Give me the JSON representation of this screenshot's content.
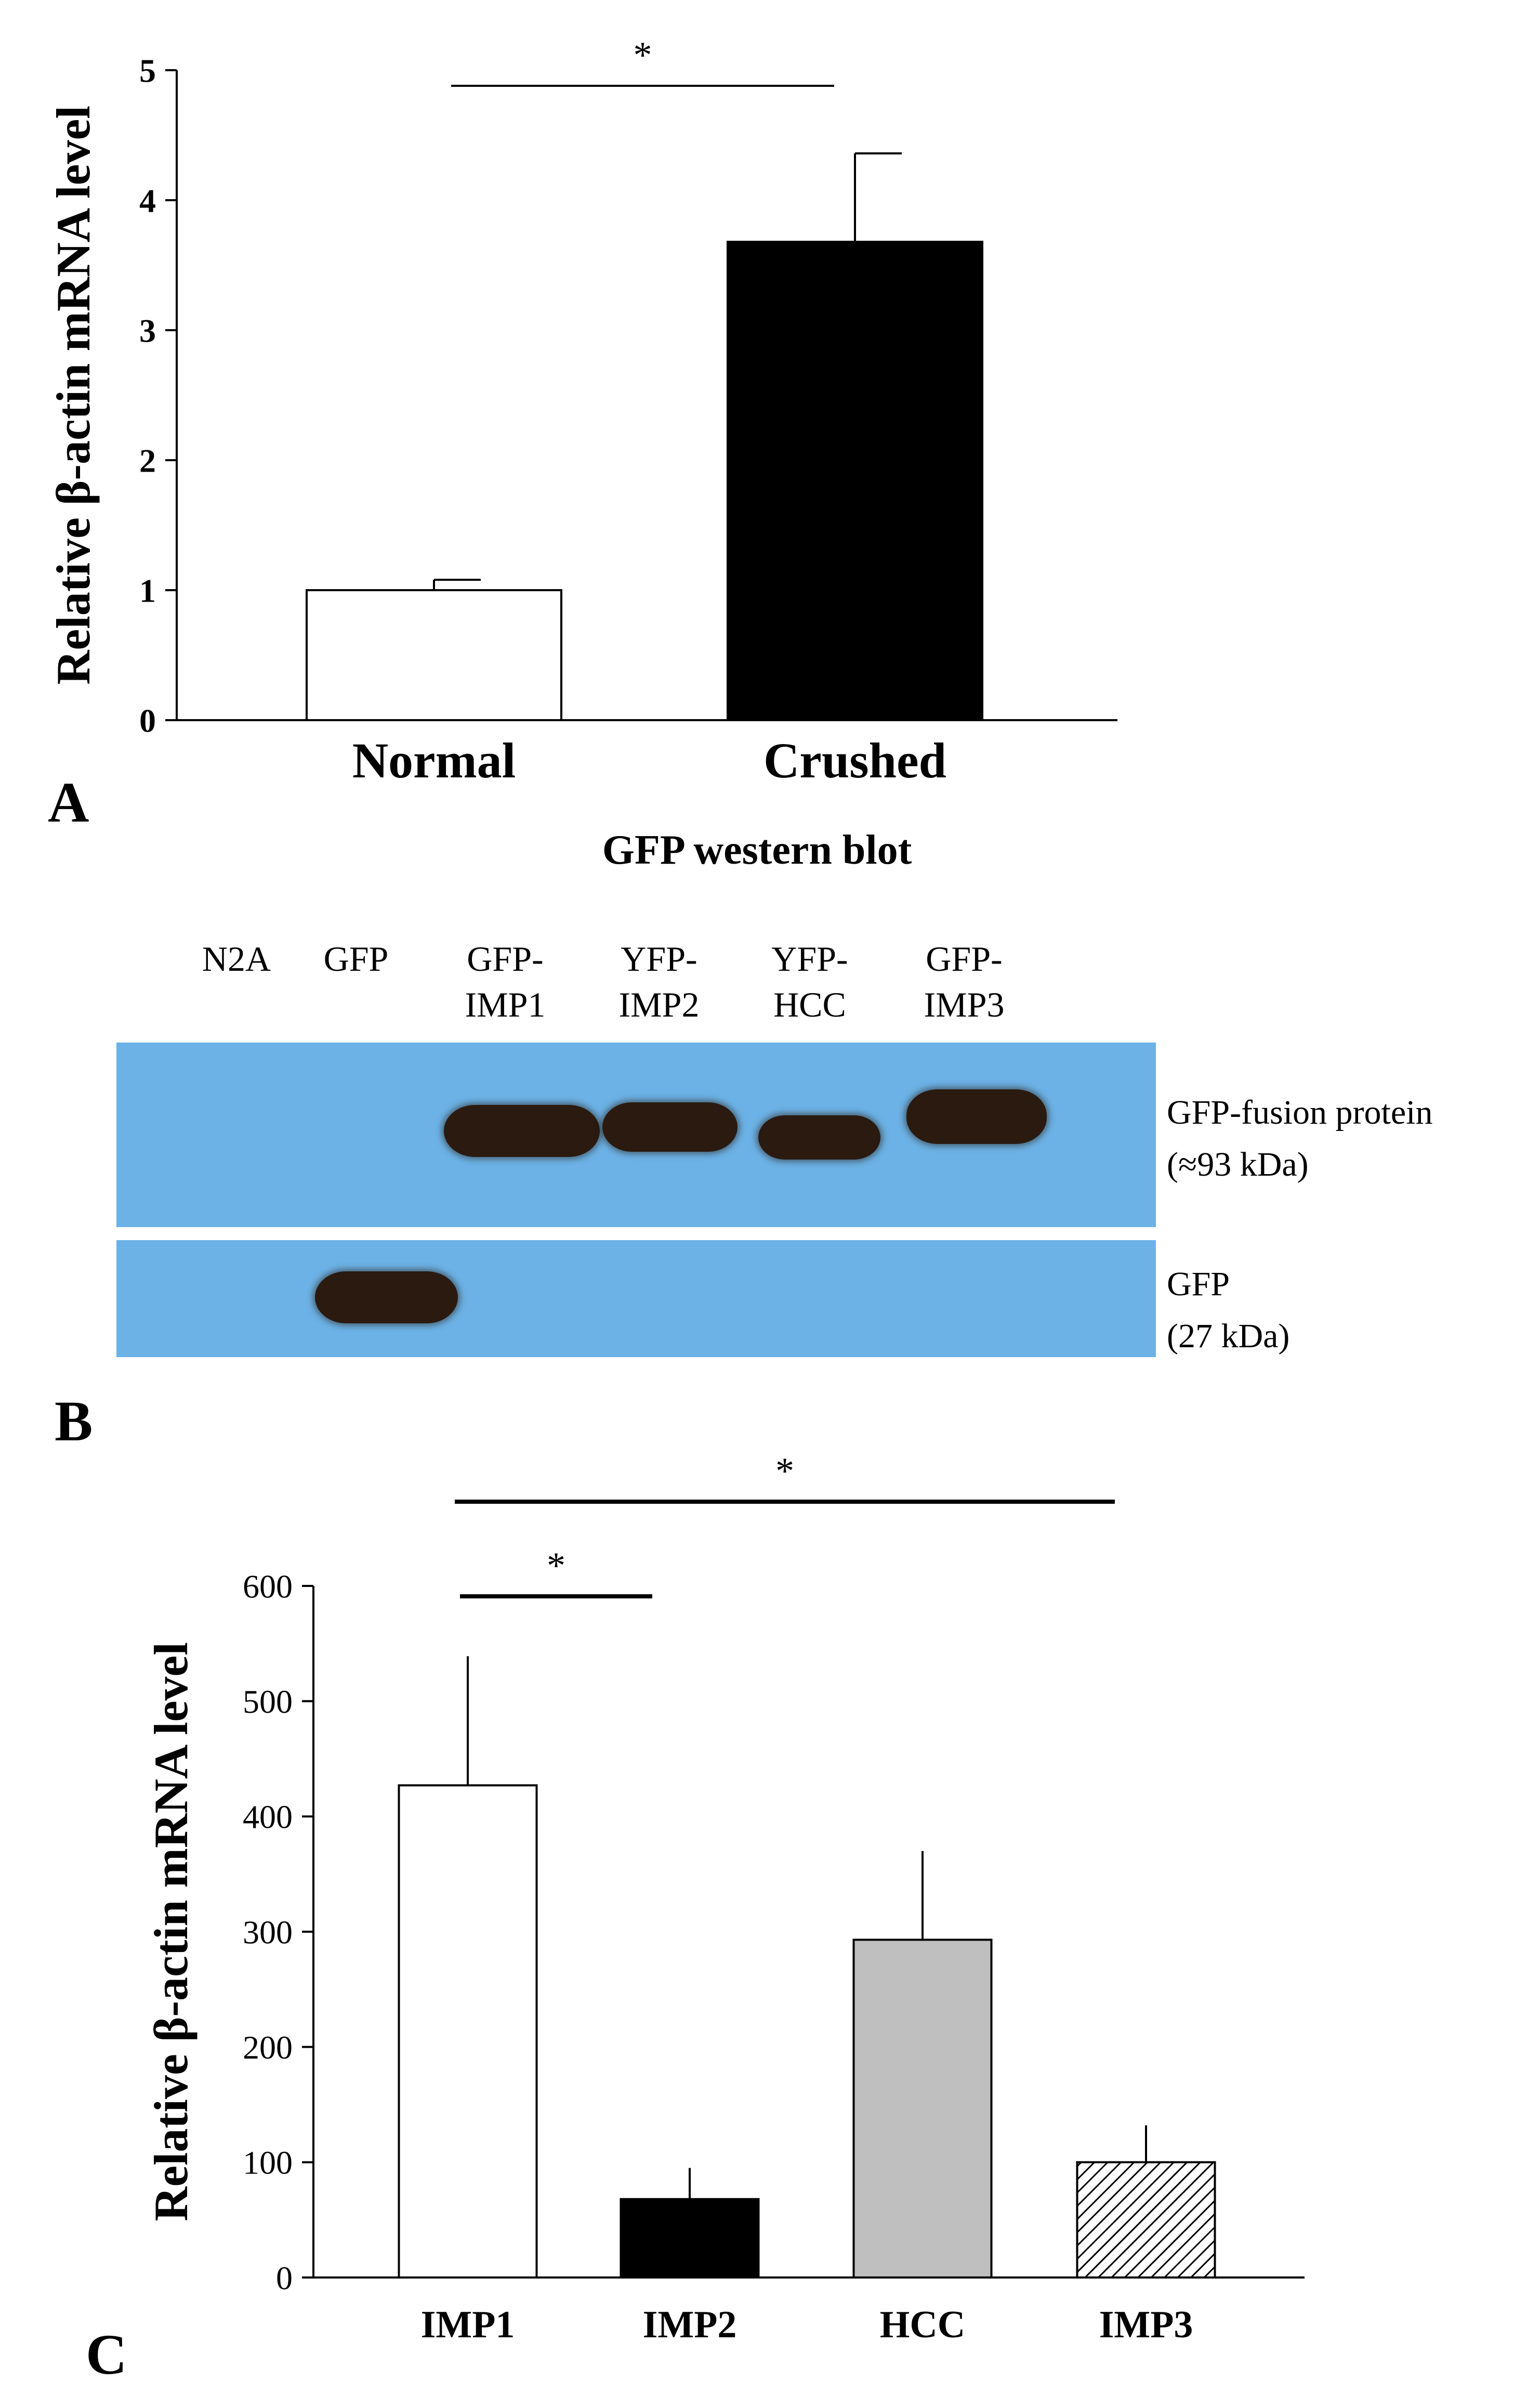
{
  "panel_a": {
    "letter": "A",
    "chart_data": {
      "type": "bar",
      "categories": [
        "Normal",
        "Crushed"
      ],
      "values": [
        1.0,
        3.68
      ],
      "errors": [
        0.08,
        0.68
      ],
      "colors": [
        "#ffffff",
        "#000000"
      ],
      "ylabel": "Relative β-actin mRNA level",
      "ylim": [
        0,
        5
      ],
      "yticks": [
        "0",
        "1",
        "2",
        "3",
        "4",
        "5"
      ],
      "significance": [
        {
          "from": 0,
          "to": 1,
          "label": "*"
        }
      ]
    }
  },
  "panel_b": {
    "letter": "B",
    "title": "GFP western blot",
    "lanes": [
      {
        "line1": "N2A",
        "line2": ""
      },
      {
        "line1": "GFP",
        "line2": ""
      },
      {
        "line1": "GFP-",
        "line2": "IMP1"
      },
      {
        "line1": "YFP-",
        "line2": "IMP2"
      },
      {
        "line1": "YFP-",
        "line2": "HCC"
      },
      {
        "line1": "GFP-",
        "line2": "IMP3"
      }
    ],
    "upper_label": {
      "line1": "GFP-fusion  protein",
      "line2": "(≈93 kDa)"
    },
    "lower_label": {
      "line1": "GFP",
      "line2": "(27 kDa)"
    },
    "blot_color": "#6cb2e6",
    "band_color": "#2a1a10"
  },
  "panel_c": {
    "letter": "C",
    "chart_data": {
      "type": "bar",
      "categories": [
        "IMP1",
        "IMP2",
        "HCC",
        "IMP3"
      ],
      "values": [
        427,
        68,
        293,
        100
      ],
      "errors": [
        112,
        27,
        77,
        32
      ],
      "colors": [
        "#ffffff",
        "#000000",
        "#bfbfbf",
        "hatched"
      ],
      "ylabel": "Relative β-actin mRNA level",
      "ylim": [
        0,
        600
      ],
      "yticks": [
        "0",
        "100",
        "200",
        "300",
        "400",
        "500",
        "600"
      ],
      "significance": [
        {
          "from": 0,
          "to": 1,
          "label": "*"
        },
        {
          "from": 0,
          "to": 3,
          "label": "*"
        }
      ]
    }
  }
}
